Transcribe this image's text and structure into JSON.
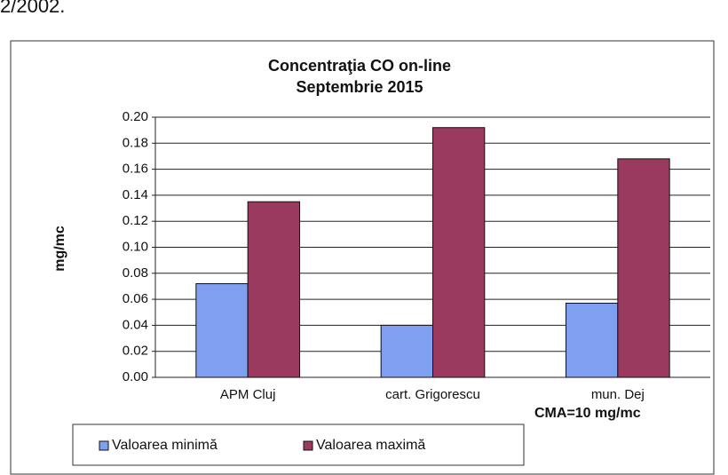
{
  "header_text": "2/2002.",
  "chart_data": {
    "type": "bar",
    "title": "Concentraţia CO on-line",
    "subtitle": "Septembrie 2015",
    "y_label": "mg/mc",
    "annotation": "CMA=10 mg/mc",
    "categories": [
      "APM Cluj",
      "cart. Grigorescu",
      "mun. Dej"
    ],
    "series": [
      {
        "name": "Valoarea minimă",
        "color": "#7f9ff0",
        "values": [
          0.072,
          0.04,
          0.057
        ]
      },
      {
        "name": "Valoarea maximă",
        "color": "#9b3a5f",
        "values": [
          0.135,
          0.192,
          0.168
        ]
      }
    ],
    "ylim": [
      0,
      0.2
    ],
    "yticks": [
      {
        "value": 0,
        "label": "0.00"
      },
      {
        "value": 0.02,
        "label": "0.02"
      },
      {
        "value": 0.04,
        "label": "0.04"
      },
      {
        "value": 0.06,
        "label": "0.06"
      },
      {
        "value": 0.08,
        "label": "0.08"
      },
      {
        "value": 0.1,
        "label": "0.10"
      },
      {
        "value": 0.12,
        "label": "0.12"
      },
      {
        "value": 0.14,
        "label": "0.14"
      },
      {
        "value": 0.16,
        "label": "0.16"
      },
      {
        "value": 0.18,
        "label": "0.18"
      },
      {
        "value": 0.2,
        "label": "0.20"
      }
    ],
    "grid": true,
    "legend": "bottom"
  }
}
